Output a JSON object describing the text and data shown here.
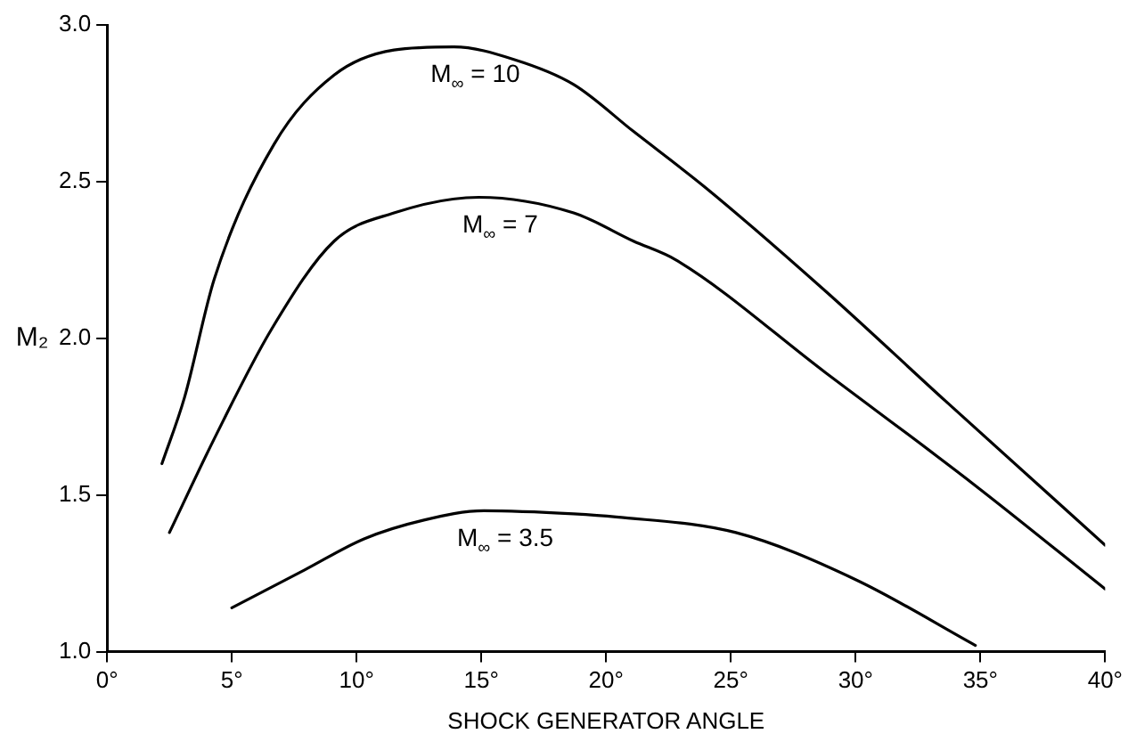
{
  "chart_data": {
    "type": "line",
    "xlabel": "SHOCK GENERATOR ANGLE",
    "ylabel": "M₂",
    "xlim": [
      0,
      40
    ],
    "xticks": [
      {
        "value": 0,
        "label": "0°"
      },
      {
        "value": 5,
        "label": "5°"
      },
      {
        "value": 10,
        "label": "10°"
      },
      {
        "value": 15,
        "label": "15°"
      },
      {
        "value": 20,
        "label": "20°"
      },
      {
        "value": 25,
        "label": "25°"
      },
      {
        "value": 30,
        "label": "30°"
      },
      {
        "value": 35,
        "label": "35°"
      },
      {
        "value": 40,
        "label": "40°"
      }
    ],
    "ylim": [
      1,
      3
    ],
    "yticks": [
      {
        "value": 1,
        "label": "1.0"
      },
      {
        "value": 1.5,
        "label": "1.5"
      },
      {
        "value": 2,
        "label": "2.0"
      },
      {
        "value": 2.5,
        "label": "2.5"
      },
      {
        "value": 3,
        "label": "3.0"
      }
    ],
    "grid": false,
    "legend": false,
    "marker": "none",
    "line_style": "solid",
    "series": [
      {
        "name": "M$_{∞}$ = 10",
        "color": "#000000",
        "x": [
          2.2,
          3.1,
          4.3,
          6.7,
          9.1,
          11.5,
          13.9,
          16.3,
          18.7,
          21.1,
          24.0,
          28.8,
          33.6,
          40
        ],
        "values": [
          1.6,
          1.81,
          2.19,
          2.62,
          2.84,
          2.92,
          2.93,
          2.89,
          2.81,
          2.66,
          2.48,
          2.15,
          1.8,
          1.34
        ]
      },
      {
        "name": "M$_{∞}$ = 7",
        "color": "#000000",
        "x": [
          2.5,
          4.3,
          6.6,
          9.1,
          11.5,
          14.9,
          18.7,
          21.1,
          22.8,
          28.8,
          34.8,
          40
        ],
        "values": [
          1.38,
          1.68,
          2.03,
          2.31,
          2.4,
          2.45,
          2.4,
          2.31,
          2.25,
          1.89,
          1.53,
          1.2
        ]
      },
      {
        "name": "M$_{∞}$ = 3.5",
        "color": "#000000",
        "x": [
          5,
          7.9,
          10.3,
          12.7,
          15.1,
          18.7,
          20.4,
          25.2,
          30,
          34.8
        ],
        "values": [
          1.14,
          1.26,
          1.36,
          1.42,
          1.45,
          1.44,
          1.43,
          1.38,
          1.23,
          1.02
        ]
      }
    ]
  }
}
